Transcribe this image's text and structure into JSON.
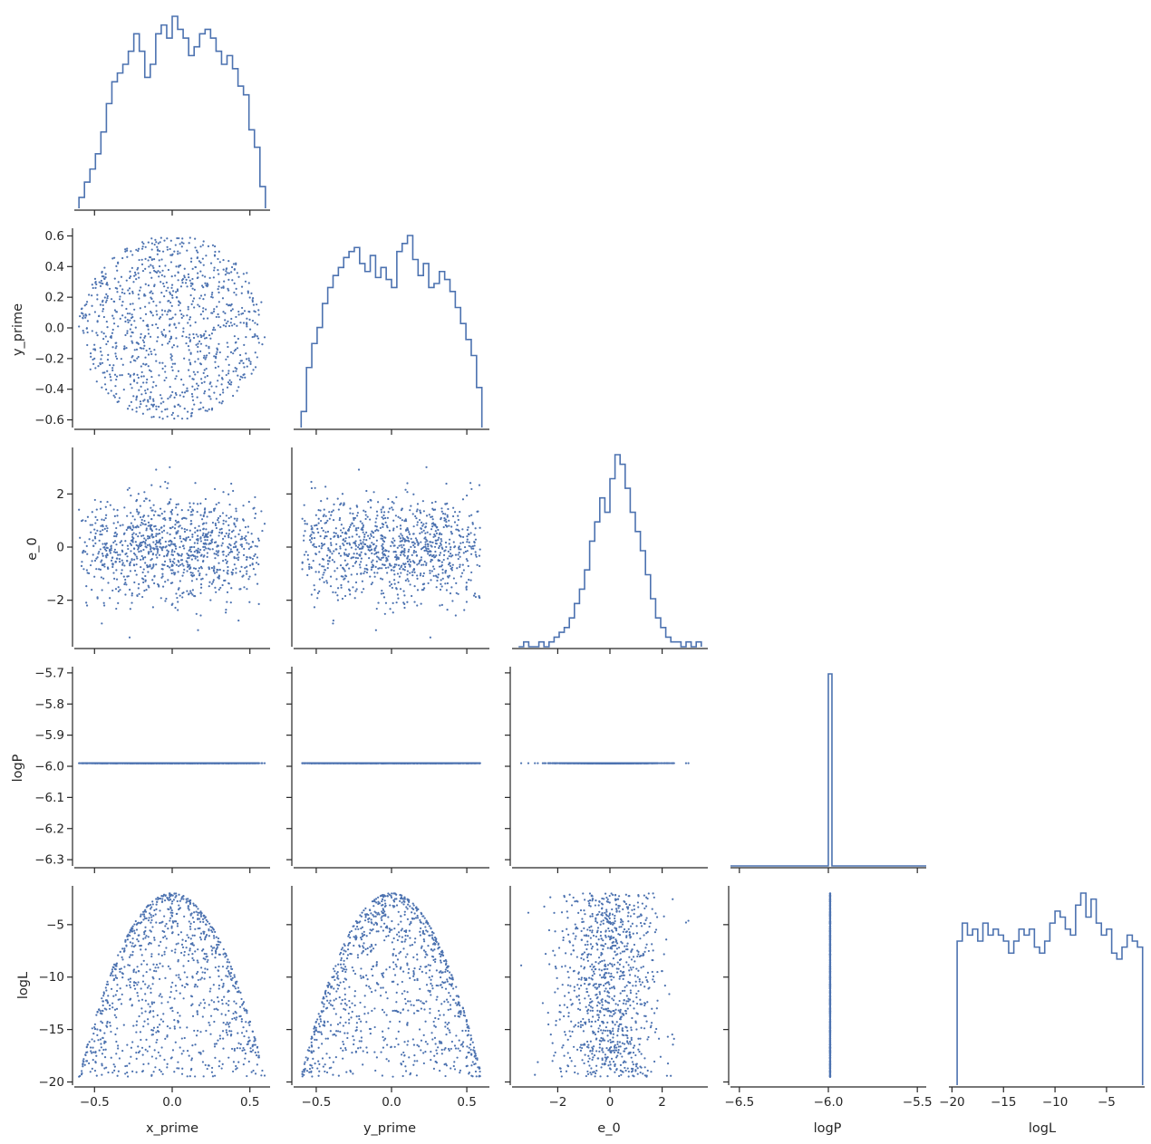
{
  "colors": {
    "series": "#4c72b0",
    "axis": "#262626",
    "background": "#ffffff"
  },
  "chart_data": {
    "type": "pairplot",
    "corner": true,
    "variables": [
      "x_prime",
      "y_prime",
      "e_0",
      "logP",
      "logL"
    ],
    "axis_labels": {
      "x": [
        "x_prime",
        "y_prime",
        "e_0",
        "logP",
        "logL"
      ],
      "y": [
        "",
        "y_prime",
        "e_0",
        "logP",
        "logL"
      ]
    },
    "ranges": {
      "x_prime": [
        -0.63,
        0.63
      ],
      "y_prime": [
        -0.65,
        0.65
      ],
      "e_0": [
        -3.75,
        3.75
      ],
      "logP": [
        -6.32,
        -5.68
      ],
      "logP_diag": [
        -6.55,
        -5.45
      ],
      "logL": [
        -20.3,
        -1.3
      ]
    },
    "ticks": {
      "x_prime": {
        "values": [
          -0.5,
          0.0,
          0.5
        ],
        "labels": [
          "−0.5",
          "0.0",
          "0.5"
        ]
      },
      "y_prime": {
        "values": [
          -0.6,
          -0.4,
          -0.2,
          0.0,
          0.2,
          0.4,
          0.6
        ],
        "labels": [
          "−0.6",
          "−0.4",
          "−0.2",
          "0.0",
          "0.2",
          "0.4",
          "0.6"
        ]
      },
      "y_prime_x": {
        "values": [
          -0.5,
          0.0,
          0.5
        ],
        "labels": [
          "−0.5",
          "0.0",
          "0.5"
        ]
      },
      "e_0": {
        "values": [
          -2,
          0,
          2
        ],
        "labels": [
          "−2",
          "0",
          "2"
        ]
      },
      "logP": {
        "values": [
          -6.3,
          -6.2,
          -6.1,
          -6.0,
          -5.9,
          -5.8,
          -5.7
        ],
        "labels": [
          "−6.3",
          "−6.2",
          "−6.1",
          "−6.0",
          "−5.9",
          "−5.8",
          "−5.7"
        ]
      },
      "logP_x": {
        "values": [
          -6.5,
          -6.0,
          -5.5
        ],
        "labels": [
          "−6.5",
          "−6.0",
          "−5.5"
        ]
      },
      "logL": {
        "values": [
          -20,
          -15,
          -10,
          -5
        ],
        "labels": [
          "−20",
          "−15",
          "−10",
          "−5"
        ]
      }
    },
    "samples": 1000,
    "logP_value": -5.99,
    "histograms": {
      "x_prime": {
        "range": [
          -0.6,
          0.6
        ],
        "counts": [
          5,
          12,
          18,
          25,
          35,
          48,
          58,
          62,
          66,
          72,
          80,
          72,
          60,
          66,
          80,
          84,
          78,
          88,
          82,
          78,
          70,
          74,
          80,
          82,
          78,
          72,
          66,
          70,
          64,
          56,
          52,
          36,
          28,
          10
        ]
      },
      "y_prime": {
        "range": [
          -0.6,
          0.6
        ],
        "counts": [
          8,
          30,
          42,
          50,
          62,
          70,
          76,
          80,
          85,
          88,
          90,
          82,
          78,
          86,
          75,
          80,
          74,
          70,
          88,
          92,
          96,
          84,
          76,
          82,
          70,
          72,
          78,
          74,
          68,
          60,
          52,
          44,
          36,
          20
        ]
      },
      "e_0": {
        "range": [
          -3.5,
          3.5
        ],
        "counts": [
          0,
          1,
          0,
          0,
          1,
          0,
          1,
          2,
          3,
          4,
          6,
          9,
          12,
          16,
          22,
          26,
          31,
          28,
          35,
          40,
          38,
          33,
          28,
          24,
          20,
          15,
          10,
          6,
          4,
          2,
          1,
          1,
          0,
          1,
          0,
          1
        ]
      },
      "logL": {
        "range": [
          -19.5,
          -1.5
        ],
        "counts": [
          24,
          27,
          25,
          26,
          24,
          27,
          25,
          26,
          25,
          24,
          22,
          24,
          26,
          25,
          26,
          23,
          22,
          24,
          27,
          29,
          28,
          26,
          25,
          30,
          32,
          28,
          31,
          27,
          25,
          26,
          22,
          21,
          23,
          25,
          24,
          23
        ]
      }
    }
  }
}
